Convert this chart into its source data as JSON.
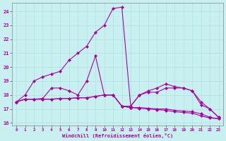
{
  "xlabel": "Windchill (Refroidissement éolien,°C)",
  "background_color": "#c8f0f0",
  "line_color": "#aa00aa",
  "marker": "D",
  "markersize": 2.0,
  "linewidth": 0.8,
  "xlim": [
    -0.5,
    23.5
  ],
  "ylim": [
    15.8,
    24.6
  ],
  "yticks": [
    16,
    17,
    18,
    19,
    20,
    21,
    22,
    23,
    24
  ],
  "xticks": [
    0,
    1,
    2,
    3,
    4,
    5,
    6,
    7,
    8,
    9,
    10,
    11,
    12,
    13,
    14,
    15,
    16,
    17,
    18,
    19,
    20,
    21,
    22,
    23
  ],
  "series": [
    [
      17.5,
      18.0,
      19.0,
      19.3,
      19.5,
      19.7,
      20.5,
      21.0,
      21.5,
      22.5,
      23.0,
      24.2,
      24.3,
      17.2,
      18.0,
      18.3,
      18.5,
      18.8,
      18.6,
      18.5,
      18.3,
      17.3,
      17.0,
      16.4
    ],
    [
      17.5,
      17.7,
      17.7,
      17.75,
      18.5,
      18.5,
      18.3,
      18.0,
      19.0,
      20.8,
      18.0,
      18.0,
      17.2,
      17.2,
      18.0,
      18.2,
      18.2,
      18.5,
      18.5,
      18.5,
      18.3,
      17.5,
      17.0,
      16.4
    ],
    [
      17.5,
      17.7,
      17.7,
      17.7,
      17.7,
      17.75,
      17.75,
      17.8,
      17.8,
      17.9,
      18.0,
      18.0,
      17.2,
      17.1,
      17.05,
      17.0,
      16.95,
      16.9,
      16.8,
      16.75,
      16.7,
      16.5,
      16.35,
      16.3
    ],
    [
      17.5,
      17.7,
      17.7,
      17.7,
      17.7,
      17.75,
      17.75,
      17.8,
      17.8,
      17.9,
      18.0,
      18.0,
      17.2,
      17.1,
      17.1,
      17.05,
      17.0,
      17.0,
      16.9,
      16.85,
      16.8,
      16.65,
      16.4,
      16.3
    ]
  ]
}
